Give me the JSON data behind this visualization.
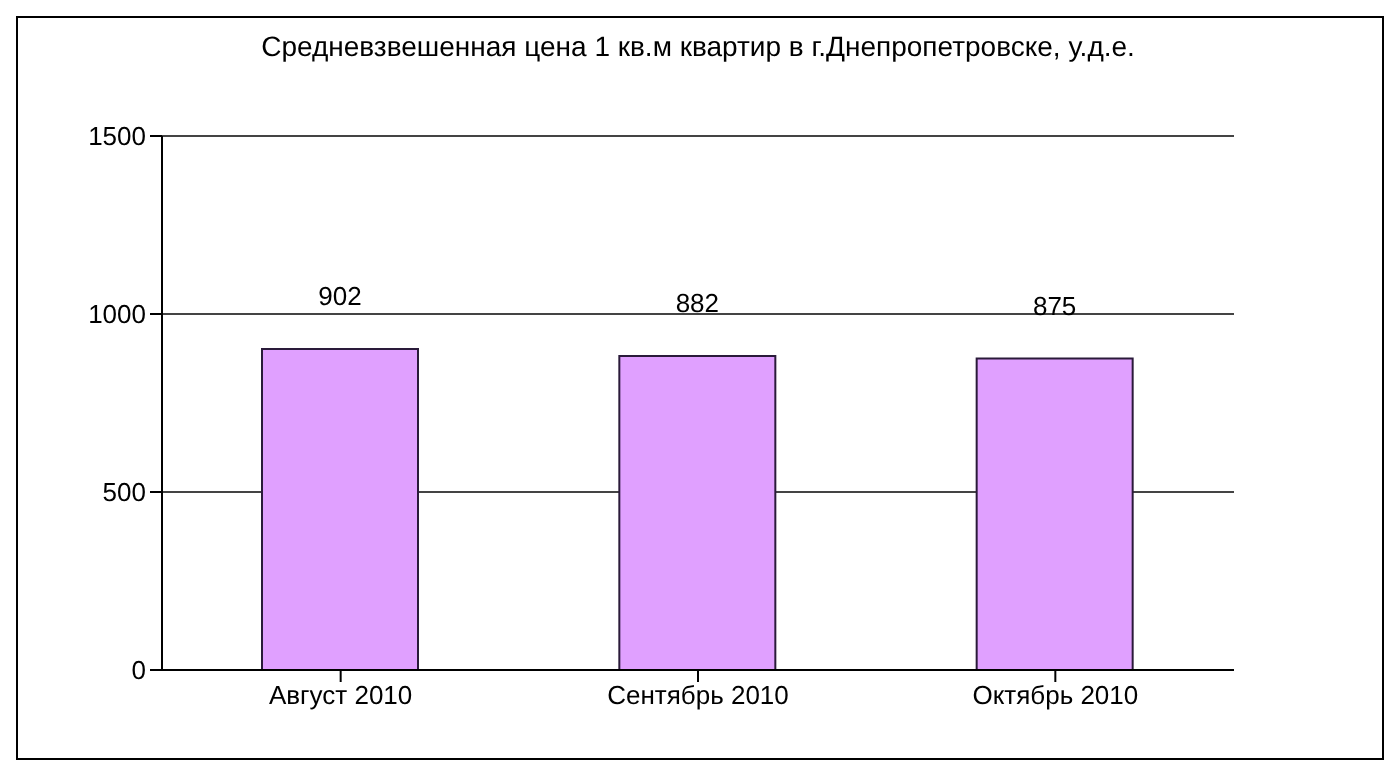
{
  "chart_data": {
    "type": "bar",
    "title": "Средневзвешенная цена 1 кв.м квартир в г.Днепропетровске, у.д.е.",
    "categories": [
      "Август 2010",
      "Сентябрь 2010",
      "Октябрь 2010"
    ],
    "values": [
      902,
      882,
      875
    ],
    "color": "#e0a0ff",
    "ylim": [
      0,
      1500
    ],
    "yticks": [
      0,
      500,
      1000,
      1500
    ],
    "grid": "y",
    "data_labels": true
  }
}
